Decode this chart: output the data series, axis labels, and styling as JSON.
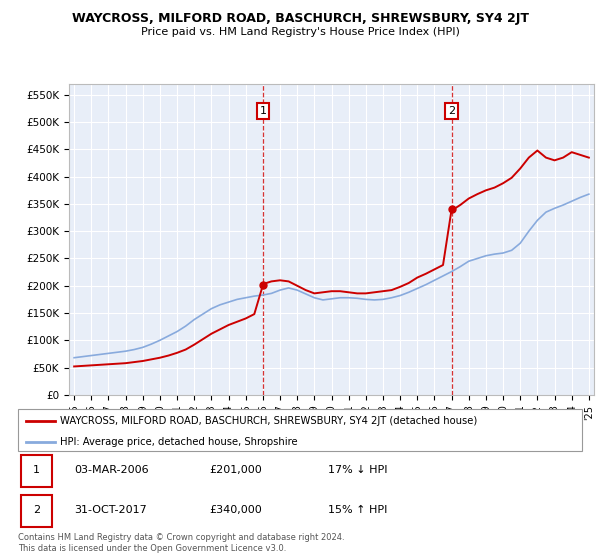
{
  "title": "WAYCROSS, MILFORD ROAD, BASCHURCH, SHREWSBURY, SY4 2JT",
  "subtitle": "Price paid vs. HM Land Registry's House Price Index (HPI)",
  "legend_line1": "WAYCROSS, MILFORD ROAD, BASCHURCH, SHREWSBURY, SY4 2JT (detached house)",
  "legend_line2": "HPI: Average price, detached house, Shropshire",
  "footer": "Contains HM Land Registry data © Crown copyright and database right 2024.\nThis data is licensed under the Open Government Licence v3.0.",
  "ann1": {
    "label": "1",
    "date": "03-MAR-2006",
    "price": "£201,000",
    "pct": "17% ↓ HPI"
  },
  "ann2": {
    "label": "2",
    "date": "31-OCT-2017",
    "price": "£340,000",
    "pct": "15% ↑ HPI"
  },
  "red_color": "#cc0000",
  "blue_color": "#88aadd",
  "bg_color": "#e8eef8",
  "ylim": [
    0,
    570000
  ],
  "yticks": [
    0,
    50000,
    100000,
    150000,
    200000,
    250000,
    300000,
    350000,
    400000,
    450000,
    500000,
    550000
  ],
  "ytick_labels": [
    "£0",
    "£50K",
    "£100K",
    "£150K",
    "£200K",
    "£250K",
    "£300K",
    "£350K",
    "£400K",
    "£450K",
    "£500K",
    "£550K"
  ],
  "hpi_x": [
    1995,
    1995.5,
    1996,
    1996.5,
    1997,
    1997.5,
    1998,
    1998.5,
    1999,
    1999.5,
    2000,
    2000.5,
    2001,
    2001.5,
    2002,
    2002.5,
    2003,
    2003.5,
    2004,
    2004.5,
    2005,
    2005.5,
    2006,
    2006.5,
    2007,
    2007.5,
    2008,
    2008.5,
    2009,
    2009.5,
    2010,
    2010.5,
    2011,
    2011.5,
    2012,
    2012.5,
    2013,
    2013.5,
    2014,
    2014.5,
    2015,
    2015.5,
    2016,
    2016.5,
    2017,
    2017.5,
    2018,
    2018.5,
    2019,
    2019.5,
    2020,
    2020.5,
    2021,
    2021.5,
    2022,
    2022.5,
    2023,
    2023.5,
    2024,
    2024.5,
    2025
  ],
  "hpi_y": [
    68000,
    70000,
    72000,
    74000,
    76000,
    78000,
    80000,
    83000,
    87000,
    93000,
    100000,
    108000,
    116000,
    126000,
    138000,
    148000,
    158000,
    165000,
    170000,
    175000,
    178000,
    181000,
    183000,
    186000,
    192000,
    196000,
    192000,
    185000,
    178000,
    174000,
    176000,
    178000,
    178000,
    177000,
    175000,
    174000,
    175000,
    178000,
    182000,
    188000,
    195000,
    202000,
    210000,
    218000,
    226000,
    235000,
    245000,
    250000,
    255000,
    258000,
    260000,
    265000,
    278000,
    300000,
    320000,
    335000,
    342000,
    348000,
    355000,
    362000,
    368000
  ],
  "red_x": [
    1995,
    1995.5,
    1996,
    1996.5,
    1997,
    1997.5,
    1998,
    1998.5,
    1999,
    1999.5,
    2000,
    2000.5,
    2001,
    2001.5,
    2002,
    2002.5,
    2003,
    2003.5,
    2004,
    2004.5,
    2005,
    2005.5,
    2006,
    2006.2,
    2006.5,
    2007,
    2007.5,
    2008,
    2008.5,
    2009,
    2009.5,
    2010,
    2010.5,
    2011,
    2011.5,
    2012,
    2012.5,
    2013,
    2013.5,
    2014,
    2014.5,
    2015,
    2015.5,
    2016,
    2016.5,
    2017,
    2017.2,
    2017.5,
    2018,
    2018.5,
    2019,
    2019.5,
    2020,
    2020.5,
    2021,
    2021.5,
    2022,
    2022.5,
    2023,
    2023.5,
    2024,
    2024.5,
    2025
  ],
  "red_y": [
    52000,
    53000,
    54000,
    55000,
    56000,
    57000,
    58000,
    60000,
    62000,
    65000,
    68000,
    72000,
    77000,
    83000,
    92000,
    102000,
    112000,
    120000,
    128000,
    134000,
    140000,
    148000,
    201000,
    205000,
    208000,
    210000,
    208000,
    200000,
    192000,
    186000,
    188000,
    190000,
    190000,
    188000,
    186000,
    186000,
    188000,
    190000,
    192000,
    198000,
    205000,
    215000,
    222000,
    230000,
    238000,
    340000,
    342000,
    348000,
    360000,
    368000,
    375000,
    380000,
    388000,
    398000,
    415000,
    435000,
    448000,
    435000,
    430000,
    435000,
    445000,
    440000,
    435000
  ],
  "vline1_x": 2006,
  "vline2_x": 2017,
  "dot1_x": 2006,
  "dot1_y": 201000,
  "dot2_x": 2017,
  "dot2_y": 340000,
  "xmin": 1995,
  "xmax": 2025
}
